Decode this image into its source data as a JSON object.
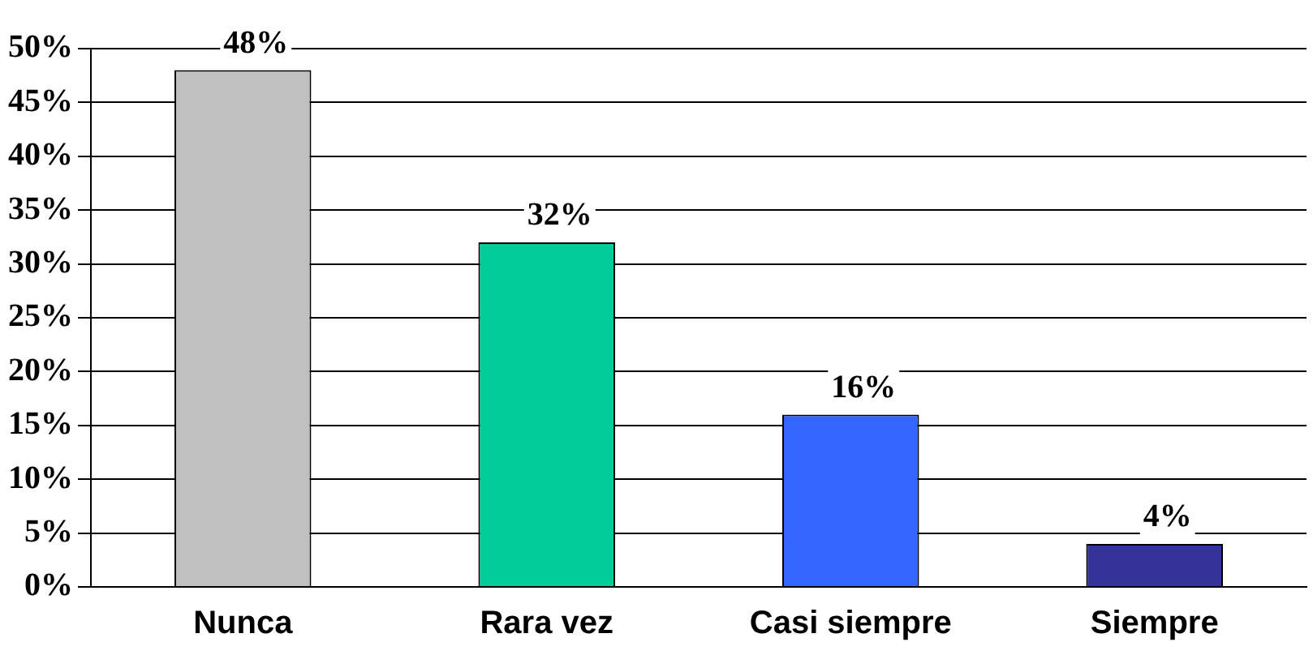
{
  "chart_data": {
    "type": "bar",
    "categories": [
      "Nunca",
      "Rara vez",
      "Casi siempre",
      "Siempre"
    ],
    "values": [
      48,
      32,
      16,
      4
    ],
    "colors": [
      "#c0c0c0",
      "#00cc99",
      "#3366ff",
      "#333399"
    ],
    "value_labels": [
      "48%",
      "32%",
      "16%",
      "4%"
    ],
    "ylim": [
      0,
      50
    ],
    "yticks": [
      {
        "value": 0,
        "label": "0%"
      },
      {
        "value": 5,
        "label": "5%"
      },
      {
        "value": 10,
        "label": "10%"
      },
      {
        "value": 15,
        "label": "15%"
      },
      {
        "value": 20,
        "label": "20%"
      },
      {
        "value": 25,
        "label": "25%"
      },
      {
        "value": 30,
        "label": "30%"
      },
      {
        "value": 35,
        "label": "35%"
      },
      {
        "value": 40,
        "label": "40%"
      },
      {
        "value": 45,
        "label": "45%"
      },
      {
        "value": 50,
        "label": "50%"
      }
    ],
    "grid": "y",
    "legend": false
  }
}
